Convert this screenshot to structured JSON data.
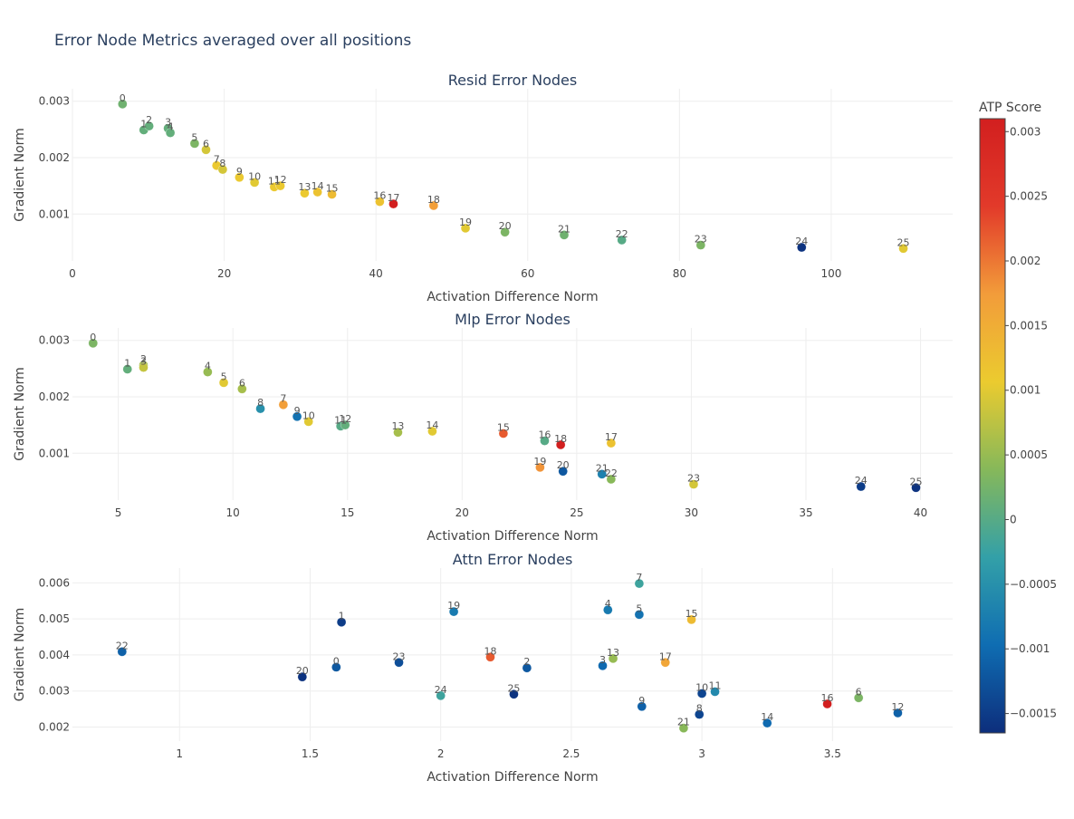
{
  "title": "Error Node Metrics averaged over all positions",
  "chart_data": [
    {
      "type": "scatter",
      "title": "Resid Error Nodes",
      "xlabel": "Activation Difference Norm",
      "ylabel": "Gradient Norm",
      "xlim": [
        0,
        116
      ],
      "ylim": [
        0.00017,
        0.00322
      ],
      "xticks": [
        0,
        20,
        40,
        60,
        80,
        100
      ],
      "yticks": [
        0.001,
        0.002,
        0.003
      ],
      "points": [
        {
          "label": "0",
          "x": 6.6,
          "y": 0.00295,
          "atp": 0.0002
        },
        {
          "label": "1",
          "x": 9.4,
          "y": 0.00249,
          "atp": 0.0001
        },
        {
          "label": "2",
          "x": 10.1,
          "y": 0.00256,
          "atp": 0.0001
        },
        {
          "label": "3",
          "x": 12.6,
          "y": 0.00252,
          "atp": 0.0001
        },
        {
          "label": "4",
          "x": 12.9,
          "y": 0.00244,
          "atp": 0.0001
        },
        {
          "label": "5",
          "x": 16.1,
          "y": 0.00225,
          "atp": 0.0003
        },
        {
          "label": "6",
          "x": 17.6,
          "y": 0.00214,
          "atp": 0.0009
        },
        {
          "label": "7",
          "x": 19.0,
          "y": 0.00186,
          "atp": 0.0011
        },
        {
          "label": "8",
          "x": 19.8,
          "y": 0.00179,
          "atp": 0.0009
        },
        {
          "label": "9",
          "x": 22.0,
          "y": 0.00165,
          "atp": 0.0011
        },
        {
          "label": "10",
          "x": 24.0,
          "y": 0.00156,
          "atp": 0.001
        },
        {
          "label": "11",
          "x": 26.6,
          "y": 0.00148,
          "atp": 0.0011
        },
        {
          "label": "12",
          "x": 27.4,
          "y": 0.0015,
          "atp": 0.0011
        },
        {
          "label": "13",
          "x": 30.6,
          "y": 0.00137,
          "atp": 0.0011
        },
        {
          "label": "14",
          "x": 32.3,
          "y": 0.00139,
          "atp": 0.0012
        },
        {
          "label": "15",
          "x": 34.2,
          "y": 0.00135,
          "atp": 0.0013
        },
        {
          "label": "16",
          "x": 40.5,
          "y": 0.00122,
          "atp": 0.0012
        },
        {
          "label": "17",
          "x": 42.3,
          "y": 0.00118,
          "atp": 0.0031
        },
        {
          "label": "18",
          "x": 47.6,
          "y": 0.00115,
          "atp": 0.0017
        },
        {
          "label": "19",
          "x": 51.8,
          "y": 0.00075,
          "atp": 0.001
        },
        {
          "label": "20",
          "x": 57.0,
          "y": 0.00068,
          "atp": 0.0003
        },
        {
          "label": "21",
          "x": 64.8,
          "y": 0.00063,
          "atp": 0.0002
        },
        {
          "label": "22",
          "x": 72.4,
          "y": 0.00054,
          "atp": 0.0
        },
        {
          "label": "23",
          "x": 82.8,
          "y": 0.00045,
          "atp": 0.0003
        },
        {
          "label": "24",
          "x": 96.1,
          "y": 0.00041,
          "atp": -0.0016
        },
        {
          "label": "25",
          "x": 109.5,
          "y": 0.00039,
          "atp": 0.001
        }
      ]
    },
    {
      "type": "scatter",
      "title": "Mlp Error Nodes",
      "xlabel": "Activation Difference Norm",
      "ylabel": "Gradient Norm",
      "xlim": [
        3.0,
        41.4
      ],
      "ylim": [
        0.00017,
        0.00322
      ],
      "xticks": [
        5,
        10,
        15,
        20,
        25,
        30,
        35,
        40
      ],
      "yticks": [
        0.001,
        0.002,
        0.003
      ],
      "points": [
        {
          "label": "0",
          "x": 3.9,
          "y": 0.00295,
          "atp": 0.0003
        },
        {
          "label": "1",
          "x": 5.4,
          "y": 0.00249,
          "atp": 0.0001
        },
        {
          "label": "2",
          "x": 6.1,
          "y": 0.00256,
          "atp": 0.0006
        },
        {
          "label": "3",
          "x": 6.1,
          "y": 0.00252,
          "atp": 0.0008
        },
        {
          "label": "4",
          "x": 8.9,
          "y": 0.00244,
          "atp": 0.0005
        },
        {
          "label": "5",
          "x": 9.6,
          "y": 0.00225,
          "atp": 0.001
        },
        {
          "label": "6",
          "x": 10.4,
          "y": 0.00214,
          "atp": 0.0006
        },
        {
          "label": "7",
          "x": 12.2,
          "y": 0.00186,
          "atp": 0.0017
        },
        {
          "label": "8",
          "x": 11.2,
          "y": 0.00179,
          "atp": -0.0005
        },
        {
          "label": "9",
          "x": 12.8,
          "y": 0.00165,
          "atp": -0.0009
        },
        {
          "label": "10",
          "x": 13.3,
          "y": 0.00156,
          "atp": 0.001
        },
        {
          "label": "11",
          "x": 14.7,
          "y": 0.00148,
          "atp": 0.0
        },
        {
          "label": "12",
          "x": 14.9,
          "y": 0.0015,
          "atp": 0.0001
        },
        {
          "label": "13",
          "x": 17.2,
          "y": 0.00137,
          "atp": 0.0006
        },
        {
          "label": "14",
          "x": 18.7,
          "y": 0.00139,
          "atp": 0.001
        },
        {
          "label": "15",
          "x": 21.8,
          "y": 0.00135,
          "atp": 0.0022
        },
        {
          "label": "16",
          "x": 23.6,
          "y": 0.00122,
          "atp": 0.0
        },
        {
          "label": "18",
          "x": 24.3,
          "y": 0.00115,
          "atp": 0.0031
        },
        {
          "label": "17",
          "x": 26.5,
          "y": 0.00118,
          "atp": 0.0012
        },
        {
          "label": "19",
          "x": 23.4,
          "y": 0.00075,
          "atp": 0.0018
        },
        {
          "label": "20",
          "x": 24.4,
          "y": 0.00068,
          "atp": -0.0012
        },
        {
          "label": "21",
          "x": 26.1,
          "y": 0.00063,
          "atp": -0.0007
        },
        {
          "label": "22",
          "x": 26.5,
          "y": 0.00054,
          "atp": 0.0004
        },
        {
          "label": "23",
          "x": 30.1,
          "y": 0.00045,
          "atp": 0.0009
        },
        {
          "label": "24",
          "x": 37.4,
          "y": 0.00041,
          "atp": -0.0015
        },
        {
          "label": "25",
          "x": 39.8,
          "y": 0.00039,
          "atp": -0.0016
        }
      ]
    },
    {
      "type": "scatter",
      "title": "Attn Error Nodes",
      "xlabel": "Activation Difference Norm",
      "ylabel": "Gradient Norm",
      "xlim": [
        0.59,
        3.96
      ],
      "ylim": [
        0.00161,
        0.00641
      ],
      "xticks": [
        1,
        1.5,
        2,
        2.5,
        3,
        3.5
      ],
      "yticks": [
        0.002,
        0.003,
        0.004,
        0.005,
        0.006
      ],
      "points": [
        {
          "label": "22",
          "x": 0.78,
          "y": 0.00409,
          "atp": -0.0011
        },
        {
          "label": "20",
          "x": 1.47,
          "y": 0.00339,
          "atp": -0.0016
        },
        {
          "label": "0",
          "x": 1.6,
          "y": 0.00366,
          "atp": -0.0012
        },
        {
          "label": "1",
          "x": 1.62,
          "y": 0.00491,
          "atp": -0.0015
        },
        {
          "label": "23",
          "x": 1.84,
          "y": 0.00379,
          "atp": -0.0013
        },
        {
          "label": "24",
          "x": 2.0,
          "y": 0.00287,
          "atp": -0.0002
        },
        {
          "label": "19",
          "x": 2.05,
          "y": 0.0052,
          "atp": -0.0008
        },
        {
          "label": "18",
          "x": 2.19,
          "y": 0.00394,
          "atp": 0.0022
        },
        {
          "label": "25",
          "x": 2.28,
          "y": 0.00291,
          "atp": -0.0016
        },
        {
          "label": "2",
          "x": 2.33,
          "y": 0.00364,
          "atp": -0.0012
        },
        {
          "label": "3",
          "x": 2.62,
          "y": 0.0037,
          "atp": -0.001
        },
        {
          "label": "4",
          "x": 2.64,
          "y": 0.00525,
          "atp": -0.0008
        },
        {
          "label": "13",
          "x": 2.66,
          "y": 0.0039,
          "atp": 0.0005
        },
        {
          "label": "5",
          "x": 2.76,
          "y": 0.00512,
          "atp": -0.0009
        },
        {
          "label": "7",
          "x": 2.76,
          "y": 0.00598,
          "atp": -0.0002
        },
        {
          "label": "9",
          "x": 2.77,
          "y": 0.00257,
          "atp": -0.0011
        },
        {
          "label": "17",
          "x": 2.86,
          "y": 0.00379,
          "atp": 0.0016
        },
        {
          "label": "21",
          "x": 2.93,
          "y": 0.00197,
          "atp": 0.0004
        },
        {
          "label": "15",
          "x": 2.96,
          "y": 0.00498,
          "atp": 0.0013
        },
        {
          "label": "8",
          "x": 2.99,
          "y": 0.00235,
          "atp": -0.0014
        },
        {
          "label": "10",
          "x": 3.0,
          "y": 0.00293,
          "atp": -0.0014
        },
        {
          "label": "11",
          "x": 3.05,
          "y": 0.00298,
          "atp": -0.0006
        },
        {
          "label": "14",
          "x": 3.25,
          "y": 0.00211,
          "atp": -0.001
        },
        {
          "label": "16",
          "x": 3.48,
          "y": 0.00264,
          "atp": 0.0031
        },
        {
          "label": "6",
          "x": 3.6,
          "y": 0.00281,
          "atp": 0.0003
        },
        {
          "label": "12",
          "x": 3.75,
          "y": 0.00239,
          "atp": -0.0011
        }
      ]
    }
  ],
  "colorbar": {
    "title": "ATP Score",
    "min": -0.00165,
    "max": 0.0031,
    "ticks": [
      {
        "value": 0.003,
        "label": "0.003"
      },
      {
        "value": 0.0025,
        "label": "0.0025"
      },
      {
        "value": 0.002,
        "label": "0.002"
      },
      {
        "value": 0.0015,
        "label": "0.0015"
      },
      {
        "value": 0.001,
        "label": "0.001"
      },
      {
        "value": 0.0005,
        "label": "0.0005"
      },
      {
        "value": 0,
        "label": "0"
      },
      {
        "value": -0.0005,
        "label": "−0.0005"
      },
      {
        "value": -0.001,
        "label": "−0.001"
      },
      {
        "value": -0.0015,
        "label": "−0.0015"
      }
    ],
    "colors": [
      "#0d2e7c",
      "#0f6db2",
      "#33a0a8",
      "#86b85a",
      "#ebcb2f",
      "#f29c3a",
      "#e23a2a",
      "#d21f1f"
    ]
  }
}
